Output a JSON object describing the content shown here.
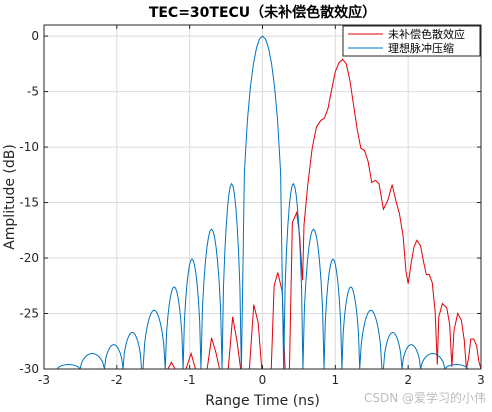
{
  "chart_data": {
    "type": "line",
    "title": "TEC=30TECU（未补偿色散效应）",
    "xlabel": "Range Time (ns)",
    "ylabel": "Amplitude (dB)",
    "xlim": [
      -3,
      3
    ],
    "ylim": [
      -30,
      1
    ],
    "x_ticks": [
      -3,
      -2,
      -1,
      0,
      1,
      2,
      3
    ],
    "y_ticks": [
      0,
      -5,
      -10,
      -15,
      -20,
      -25,
      -30
    ],
    "x_tick_labels": [
      "-3",
      "-2",
      "-1",
      "0",
      "1",
      "2",
      "3"
    ],
    "y_tick_labels": [
      "0",
      "-5",
      "-10",
      "-15",
      "-20",
      "-25",
      "-30"
    ],
    "grid": true,
    "legend_position": "top-right",
    "series": [
      {
        "name": "未补偿色散效应",
        "color": "#e3000b",
        "points": [
          [
            -1.3,
            -30
          ],
          [
            -1.25,
            -29.4
          ],
          [
            -1.2,
            -30
          ],
          [
            -1.05,
            -30
          ],
          [
            -0.98,
            -28.6
          ],
          [
            -0.92,
            -30
          ],
          [
            -0.76,
            -30
          ],
          [
            -0.7,
            -27.2
          ],
          [
            -0.64,
            -28.5
          ],
          [
            -0.59,
            -30
          ],
          [
            -0.47,
            -30
          ],
          [
            -0.41,
            -25.3
          ],
          [
            -0.35,
            -27.5
          ],
          [
            -0.3,
            -30
          ],
          [
            -0.18,
            -30
          ],
          [
            -0.12,
            -24.2
          ],
          [
            -0.06,
            -25.8
          ],
          [
            -0.01,
            -30
          ],
          [
            0.12,
            -30
          ],
          [
            0.16,
            -22.5
          ],
          [
            0.21,
            -21.3
          ],
          [
            0.27,
            -23.0
          ],
          [
            0.31,
            -30
          ],
          [
            0.37,
            -30
          ],
          [
            0.41,
            -16.8
          ],
          [
            0.47,
            -15.9
          ],
          [
            0.51,
            -18.0
          ],
          [
            0.55,
            -22.0
          ],
          [
            0.57,
            -17.0
          ],
          [
            0.62,
            -13.5
          ],
          [
            0.68,
            -10.2
          ],
          [
            0.74,
            -8.2
          ],
          [
            0.8,
            -7.6
          ],
          [
            0.85,
            -7.4
          ],
          [
            0.9,
            -6.5
          ],
          [
            0.95,
            -4.8
          ],
          [
            1.0,
            -3.2
          ],
          [
            1.05,
            -2.4
          ],
          [
            1.1,
            -2.1
          ],
          [
            1.15,
            -2.5
          ],
          [
            1.2,
            -4.0
          ],
          [
            1.25,
            -6.2
          ],
          [
            1.3,
            -8.4
          ],
          [
            1.35,
            -10.1
          ],
          [
            1.4,
            -10.3
          ],
          [
            1.45,
            -11.3
          ],
          [
            1.5,
            -13.2
          ],
          [
            1.55,
            -13.0
          ],
          [
            1.6,
            -13.3
          ],
          [
            1.66,
            -15.6
          ],
          [
            1.72,
            -14.8
          ],
          [
            1.78,
            -13.4
          ],
          [
            1.83,
            -14.8
          ],
          [
            1.88,
            -16.0
          ],
          [
            1.93,
            -18.0
          ],
          [
            1.97,
            -21.2
          ],
          [
            2.0,
            -22.3
          ],
          [
            2.04,
            -20.5
          ],
          [
            2.08,
            -19.0
          ],
          [
            2.12,
            -18.4
          ],
          [
            2.17,
            -18.9
          ],
          [
            2.21,
            -20.3
          ],
          [
            2.25,
            -21.5
          ],
          [
            2.29,
            -21.5
          ],
          [
            2.33,
            -22.2
          ],
          [
            2.37,
            -24.8
          ],
          [
            2.4,
            -29.6
          ],
          [
            2.42,
            -25.3
          ],
          [
            2.47,
            -24.1
          ],
          [
            2.53,
            -24.5
          ],
          [
            2.57,
            -26.0
          ],
          [
            2.6,
            -29.8
          ],
          [
            2.63,
            -26.5
          ],
          [
            2.68,
            -25.0
          ],
          [
            2.73,
            -25.6
          ],
          [
            2.77,
            -27.4
          ],
          [
            2.8,
            -30
          ],
          [
            2.83,
            -29.0
          ],
          [
            2.86,
            -27.3
          ],
          [
            2.9,
            -27.3
          ],
          [
            2.94,
            -27.9
          ],
          [
            2.97,
            -29.3
          ],
          [
            3.0,
            -30
          ]
        ]
      },
      {
        "name": "理想脉冲压缩",
        "color": "#0072bd",
        "main_lobe": {
          "center": 0,
          "peak": 0,
          "half_width": 0.29
        },
        "side_lobes": [
          {
            "center": -2.67,
            "peak": -29.6
          },
          {
            "center": -2.34,
            "peak": -28.6
          },
          {
            "center": -2.0,
            "peak": -27.8
          },
          {
            "center": -1.83,
            "peak": -26.7
          },
          {
            "center": -1.47,
            "peak": -24.7
          },
          {
            "center": -1.2,
            "peak": -22.6
          },
          {
            "center": -0.98,
            "peak": -20.1
          },
          {
            "center": -0.71,
            "peak": -17.4
          },
          {
            "center": -0.4,
            "peak": -13.3
          },
          {
            "center": 0.4,
            "peak": -13.3
          },
          {
            "center": 0.71,
            "peak": -17.4
          },
          {
            "center": 0.98,
            "peak": -20.1
          },
          {
            "center": 1.2,
            "peak": -22.6
          },
          {
            "center": 1.47,
            "peak": -24.7
          },
          {
            "center": 1.83,
            "peak": -26.7
          },
          {
            "center": 2.0,
            "peak": -27.8
          },
          {
            "center": 2.34,
            "peak": -28.6
          },
          {
            "center": 2.67,
            "peak": -29.6
          }
        ]
      }
    ]
  },
  "watermark": "CSDN @爱学习的小伟"
}
